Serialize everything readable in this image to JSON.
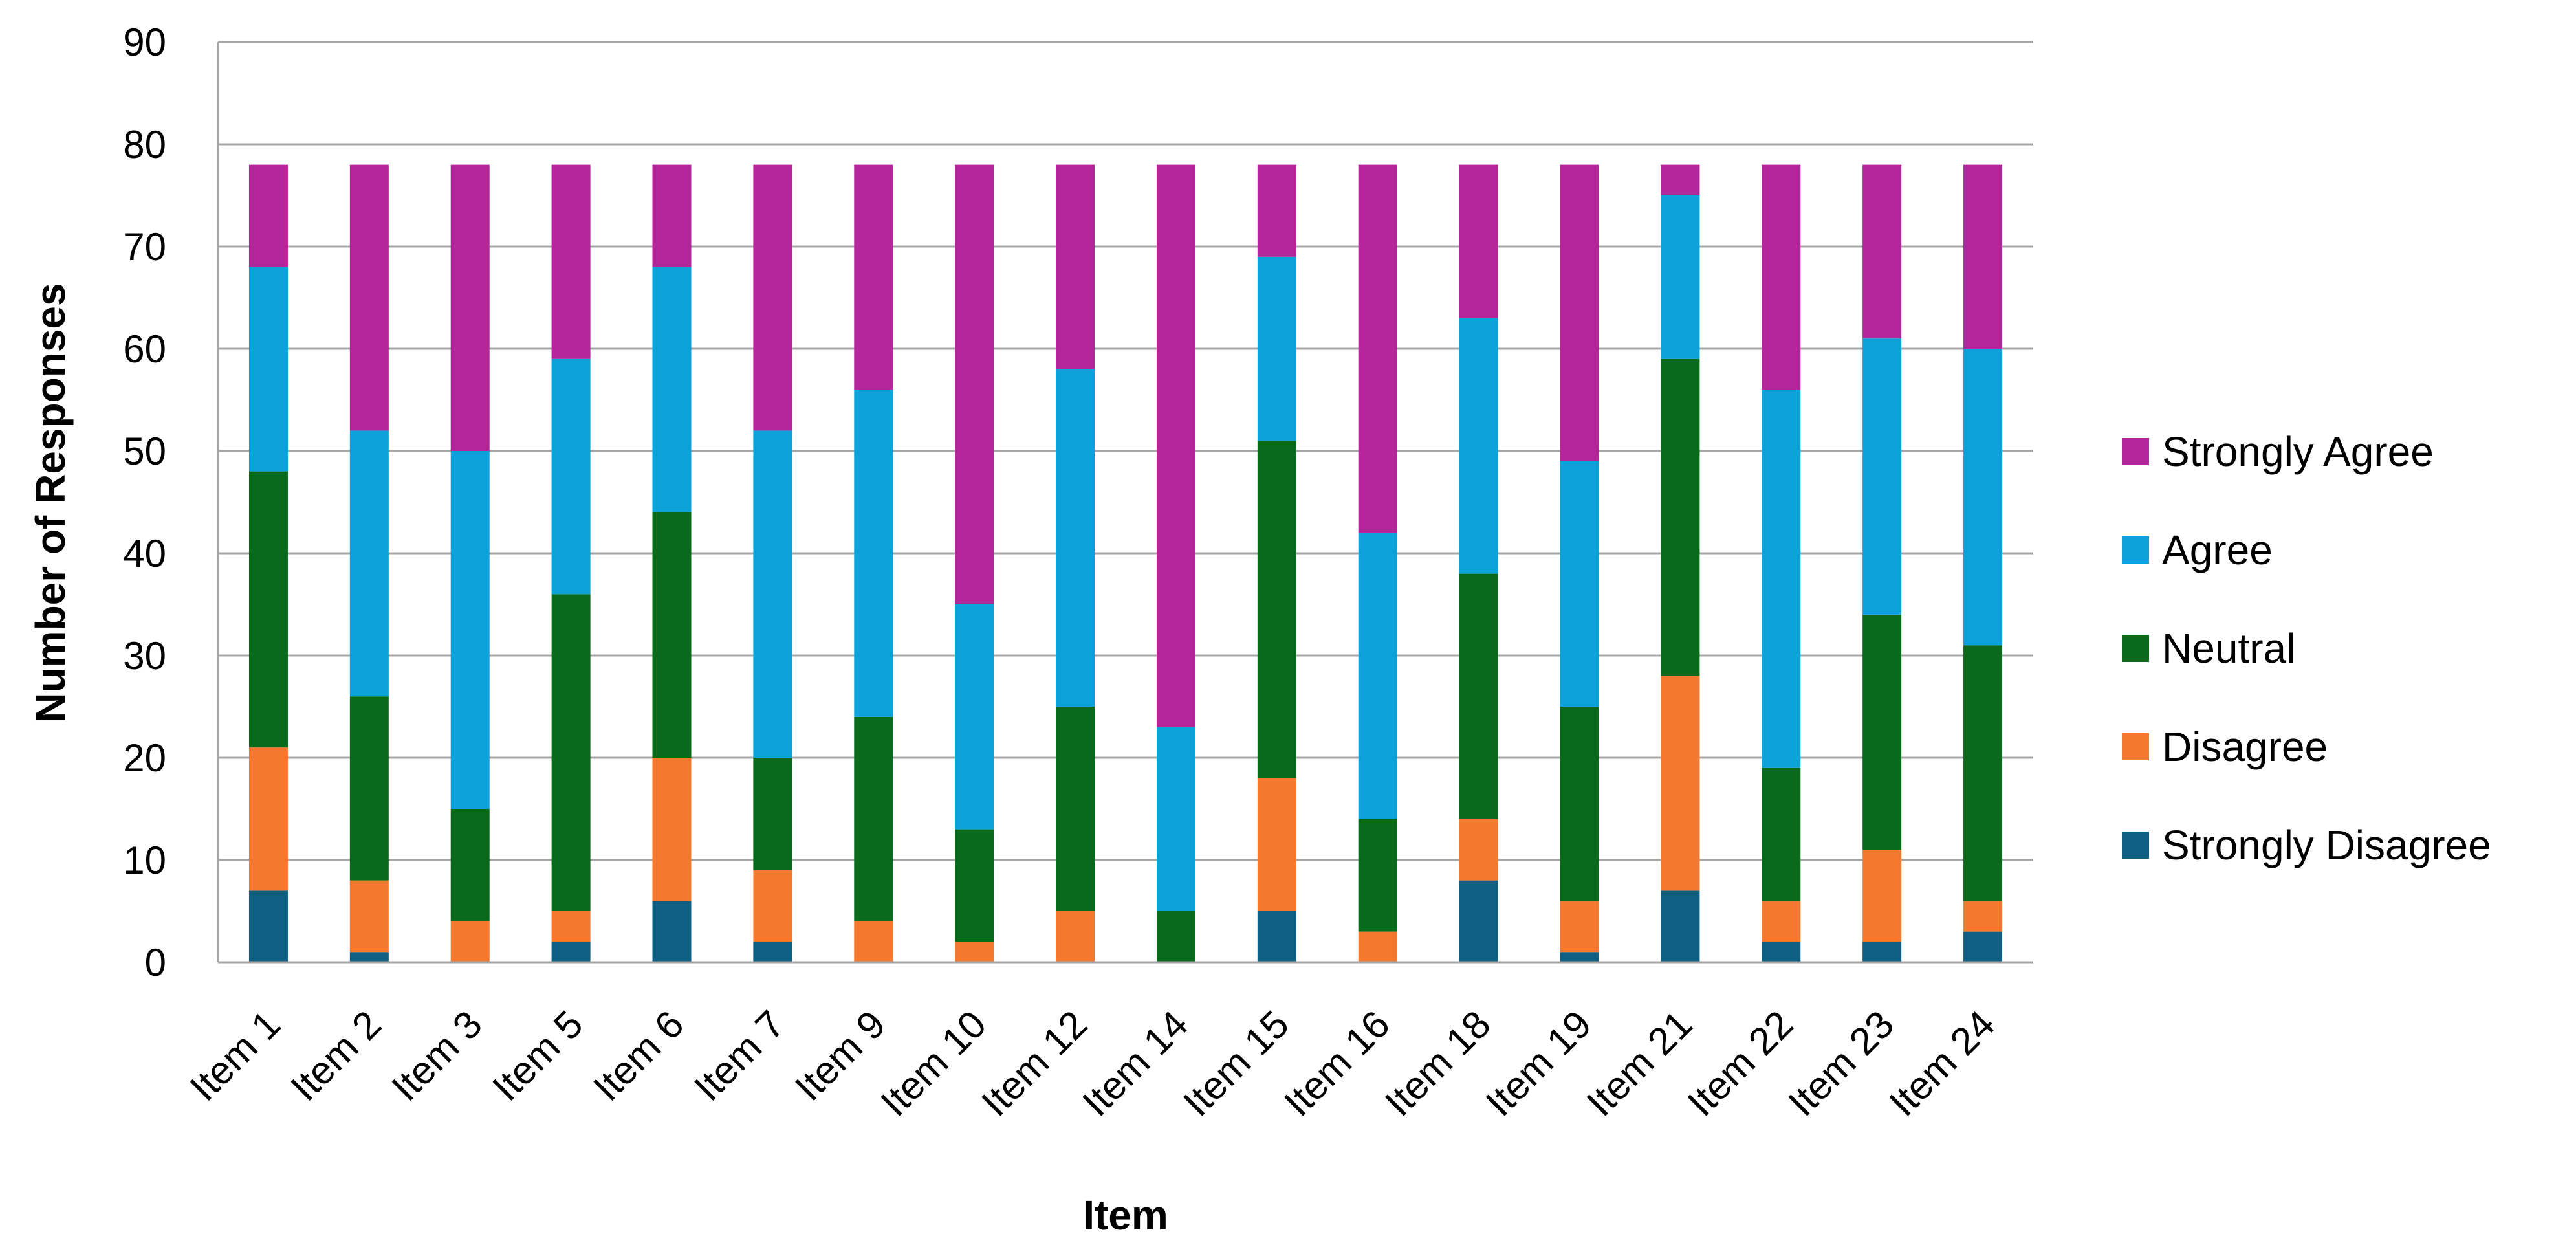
{
  "chart_data": {
    "type": "bar",
    "stacked": true,
    "title": "",
    "xlabel": "Item",
    "ylabel": "Number of Responses",
    "ylim": [
      0,
      90
    ],
    "yticks": [
      0,
      10,
      20,
      30,
      40,
      50,
      60,
      70,
      80,
      90
    ],
    "grid": true,
    "legend_position": "right",
    "categories": [
      "Item 1",
      "Item 2",
      "Item 3",
      "Item 5",
      "Item 6",
      "Item 7",
      "Item 9",
      "Item 10",
      "Item 12",
      "Item 14",
      "Item 15",
      "Item 16",
      "Item 18",
      "Item 19",
      "Item 21",
      "Item 22",
      "Item 23",
      "Item 24"
    ],
    "series": [
      {
        "name": "Strongly Disagree",
        "color": "#0e5f82",
        "values": [
          7,
          1,
          0,
          2,
          6,
          2,
          0,
          0,
          0,
          0,
          5,
          0,
          8,
          1,
          7,
          2,
          2,
          3
        ]
      },
      {
        "name": "Disagree",
        "color": "#f4792f",
        "values": [
          14,
          7,
          4,
          3,
          14,
          7,
          4,
          2,
          5,
          0,
          13,
          3,
          6,
          5,
          21,
          4,
          9,
          3
        ]
      },
      {
        "name": "Neutral",
        "color": "#0a6a1c",
        "values": [
          27,
          18,
          11,
          31,
          24,
          11,
          20,
          11,
          20,
          5,
          33,
          11,
          24,
          19,
          31,
          13,
          23,
          25
        ]
      },
      {
        "name": "Agree",
        "color": "#0aa2d8",
        "values": [
          20,
          26,
          35,
          23,
          24,
          32,
          32,
          22,
          33,
          18,
          18,
          28,
          25,
          24,
          16,
          37,
          27,
          29
        ]
      },
      {
        "name": "Strongly Agree",
        "color": "#b5259a",
        "values": [
          10,
          26,
          28,
          19,
          10,
          26,
          22,
          43,
          20,
          55,
          9,
          36,
          15,
          29,
          3,
          22,
          17,
          18
        ]
      }
    ]
  }
}
